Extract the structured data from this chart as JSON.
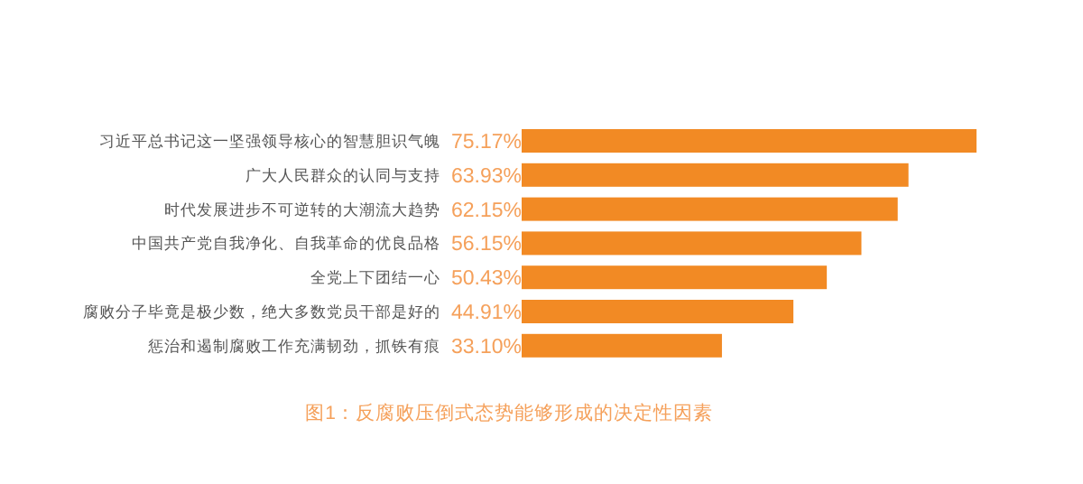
{
  "chart_data": {
    "type": "bar",
    "orientation": "horizontal",
    "data_labels": true,
    "categories": [
      "习近平总书记这一坚强领导核心的智慧胆识气魄",
      "广大人民群众的认同与支持",
      "时代发展进步不可逆转的大潮流大趋势",
      "中国共产党自我净化、自我革命的优良品格",
      "全党上下团结一心",
      "腐败分子毕竟是极少数，绝大多数党员干部是好的",
      "惩治和遏制腐败工作充满韧劲，抓铁有痕"
    ],
    "values": [
      75.17,
      63.93,
      62.15,
      56.15,
      50.43,
      44.91,
      33.1
    ],
    "value_labels": [
      "75.17%",
      "63.93%",
      "62.15%",
      "56.15%",
      "50.43%",
      "44.91%",
      "33.10%"
    ],
    "color": "#f28a24",
    "annotations": [
      "图1：反腐败压倒式态势能够形成的决定性因素"
    ]
  }
}
